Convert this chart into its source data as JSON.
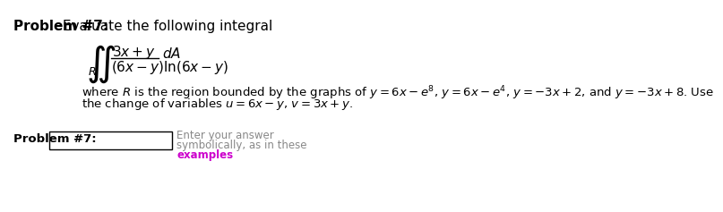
{
  "title_bold": "Problem #7:",
  "title_normal": " Evaluate the following integral",
  "body_text_1": "where $R$ is the region bounded by the graphs of $y = 6x - e^8$, $y = 6x - e^4$, $y = -3x + 2$, and $y = -3x + 8$. Use",
  "body_text_2": "the change of variables $u = 6x - y$, $v = 3x + y$.",
  "label_text": "Problem #7:",
  "hint_line1": "Enter your answer",
  "hint_line2": "symbolically, as in these",
  "hint_line3": "examples",
  "background_color": "#ffffff",
  "text_color": "#000000",
  "hint_color": "#888888",
  "examples_color": "#cc00cc",
  "box_color": "#000000",
  "title_fontsize": 11,
  "body_fontsize": 9.5,
  "integral_fontsize": 11,
  "hint_fontsize": 8.5
}
